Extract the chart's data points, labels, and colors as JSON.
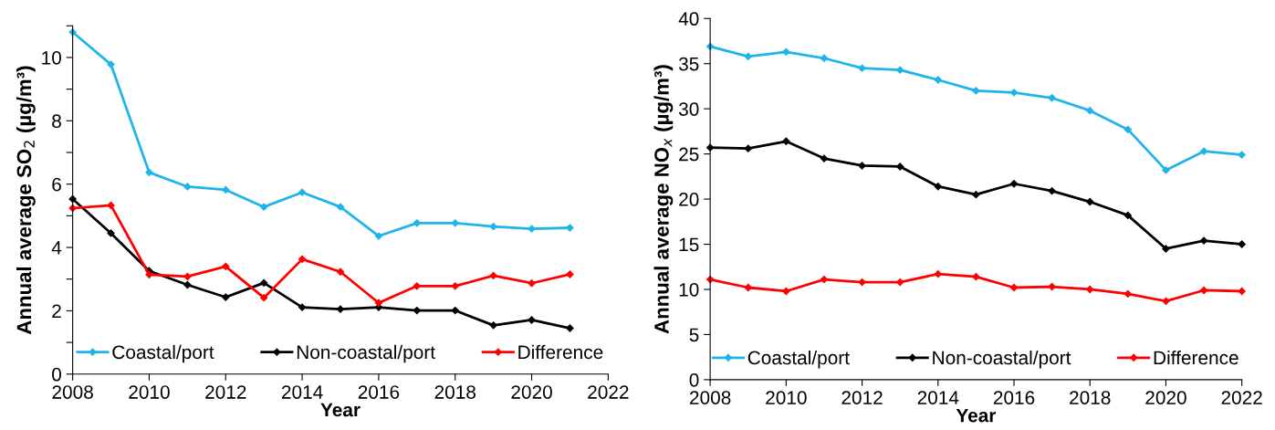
{
  "chart_data": [
    {
      "type": "line",
      "xlabel": "Year",
      "ylabel": "Annual average SO$_{2}$ (µg/m³)",
      "x": [
        2008,
        2009,
        2010,
        2011,
        2012,
        2013,
        2014,
        2015,
        2016,
        2017,
        2018,
        2019,
        2020,
        2021
      ],
      "series": [
        {
          "name": "Coastal/port",
          "color": "#1fb4ea",
          "values": [
            10.8,
            9.78,
            6.37,
            5.92,
            5.82,
            5.28,
            5.74,
            5.28,
            4.36,
            4.77,
            4.77,
            4.66,
            4.59,
            4.62
          ]
        },
        {
          "name": "Non-coastal/port",
          "color": "#000000",
          "values": [
            5.53,
            4.45,
            3.26,
            2.82,
            2.43,
            2.88,
            2.11,
            2.05,
            2.11,
            2.01,
            2.01,
            1.54,
            1.71,
            1.45
          ]
        },
        {
          "name": "Difference",
          "color": "#ff0000",
          "values": [
            5.24,
            5.33,
            3.14,
            3.08,
            3.4,
            2.41,
            3.63,
            3.23,
            2.25,
            2.78,
            2.78,
            3.11,
            2.87,
            3.15
          ]
        }
      ],
      "xlim": [
        2008,
        2022
      ],
      "xticks": [
        2008,
        2010,
        2012,
        2014,
        2016,
        2018,
        2020,
        2022
      ],
      "ylim": [
        0,
        11
      ],
      "yticks": [
        0,
        {
          "value": 1,
          "label": null
        },
        2,
        {
          "value": 3,
          "label": null
        },
        4,
        {
          "value": 5,
          "label": null
        },
        6,
        {
          "value": 7,
          "label": null
        },
        8,
        {
          "value": 9,
          "label": null
        },
        10,
        {
          "value": 11,
          "label": null
        }
      ],
      "marker": "diamond",
      "line_style": "solid",
      "legend": "bottom",
      "grid": false
    },
    {
      "type": "line",
      "xlabel": "Year",
      "ylabel": "Annual average NO$_{x}$ (µg/m³)",
      "x": [
        2008,
        2009,
        2010,
        2011,
        2012,
        2013,
        2014,
        2015,
        2016,
        2017,
        2018,
        2019,
        2020,
        2021,
        2022
      ],
      "series": [
        {
          "name": "Coastal/port",
          "color": "#1fb4ea",
          "values": [
            36.9,
            35.8,
            36.3,
            35.6,
            34.5,
            34.3,
            33.2,
            32.0,
            31.8,
            31.2,
            29.8,
            27.7,
            23.2,
            25.3,
            24.9
          ]
        },
        {
          "name": "Non-coastal/port",
          "color": "#000000",
          "values": [
            25.7,
            25.6,
            26.4,
            24.5,
            23.7,
            23.6,
            21.4,
            20.5,
            21.7,
            20.9,
            19.7,
            18.2,
            14.5,
            15.4,
            15.0
          ]
        },
        {
          "name": "Difference",
          "color": "#ff0000",
          "values": [
            11.1,
            10.2,
            9.8,
            11.1,
            10.8,
            10.8,
            11.7,
            11.4,
            10.2,
            10.3,
            10.0,
            9.5,
            8.7,
            9.9,
            9.8
          ]
        }
      ],
      "xlim": [
        2008,
        2022
      ],
      "xticks": [
        2008,
        2010,
        2012,
        2014,
        2016,
        2018,
        2020,
        2022
      ],
      "ylim": [
        0,
        40
      ],
      "yticks": [
        0,
        5,
        10,
        15,
        20,
        25,
        30,
        35,
        40
      ],
      "marker": "diamond",
      "line_style": "solid",
      "legend": "bottom",
      "grid": false
    }
  ]
}
